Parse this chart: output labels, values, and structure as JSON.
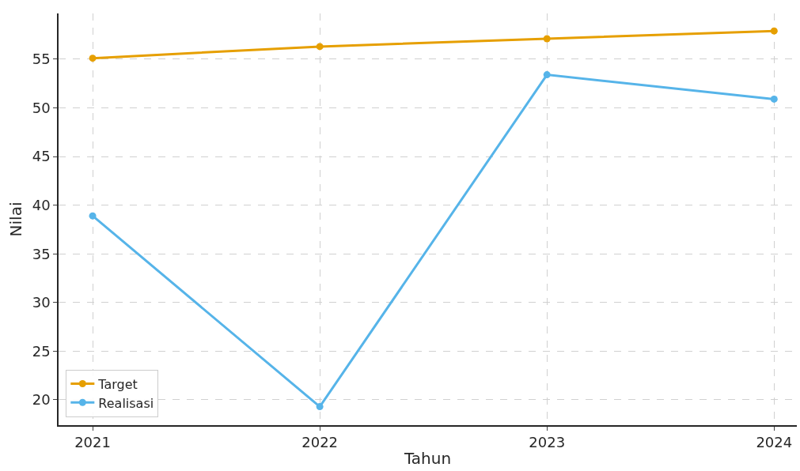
{
  "chart_data": {
    "type": "line",
    "xlabel": "Tahun",
    "ylabel": "Nilai",
    "x": [
      2021,
      2022,
      2023,
      2024
    ],
    "series": [
      {
        "name": "Target",
        "color": "#e69f00",
        "values": [
          55.1,
          56.3,
          57.1,
          57.9
        ]
      },
      {
        "name": "Realisasi",
        "color": "#56b4e9",
        "values": [
          38.9,
          19.3,
          53.4,
          50.9
        ]
      }
    ],
    "xlim": [
      2020.85,
      2024.1
    ],
    "xticks": [
      2021,
      2022,
      2023,
      2024
    ],
    "ylim": [
      17.4,
      59.7
    ],
    "yticks": [
      20,
      25,
      30,
      35,
      40,
      45,
      50,
      55
    ],
    "grid": true,
    "legend": "bottom left",
    "marker": "circle",
    "line_style": "solid"
  }
}
